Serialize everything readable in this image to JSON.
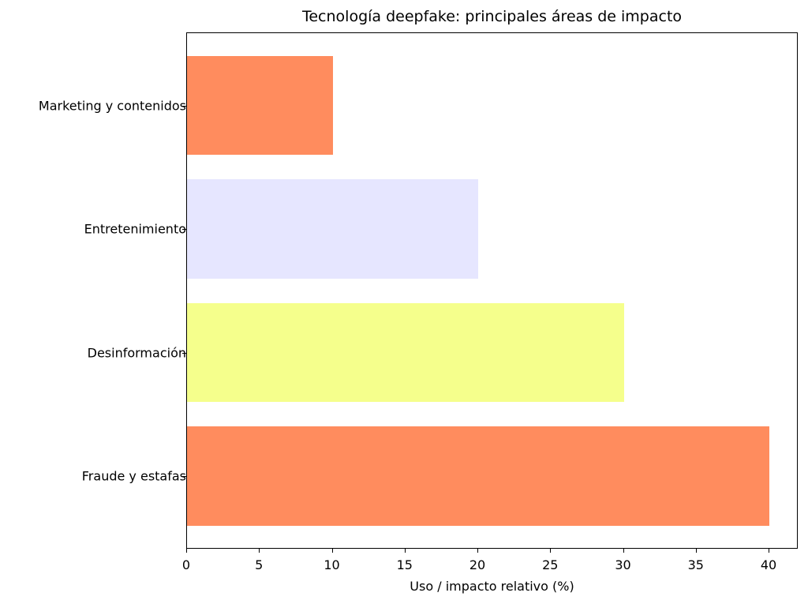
{
  "chart_data": {
    "type": "bar",
    "orientation": "horizontal",
    "title": "Tecnología deepfake: principales áreas de impacto",
    "xlabel": "Uso / impacto relativo (%)",
    "ylabel": "",
    "categories": [
      "Fraude y estafas",
      "Desinformación",
      "Entretenimiento",
      "Marketing y contenidos"
    ],
    "values": [
      40,
      30,
      20,
      10
    ],
    "colors": [
      "#FF8C5E",
      "#F5FF8C",
      "#E6E6FF",
      "#FF8C5E"
    ],
    "xlim": [
      0,
      42
    ],
    "xticks": [
      0,
      5,
      10,
      15,
      20,
      25,
      30,
      35,
      40
    ],
    "grid": false,
    "legend": null
  }
}
